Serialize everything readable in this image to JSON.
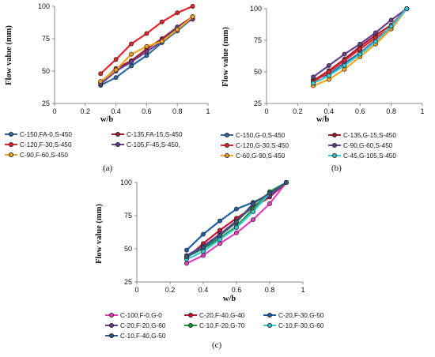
{
  "chart_data": [
    {
      "panel_label": "(a)",
      "type": "line",
      "xlabel": "w/b",
      "ylabel": "Flow value (mm)",
      "xlim": [
        0,
        1
      ],
      "ylim": [
        25,
        100
      ],
      "x_ticks": [
        "0",
        "0.2",
        "0.4",
        "0.6",
        "0.8",
        "1"
      ],
      "y_ticks": [
        "25",
        "50",
        "75",
        "100"
      ],
      "grid": false,
      "x": [
        0.3,
        0.4,
        0.5,
        0.6,
        0.7,
        0.8,
        0.9
      ],
      "series": [
        {
          "name": "C-150,FA-0,S-450",
          "color": "#2b6aa6",
          "values": [
            39,
            45,
            54,
            62,
            72,
            81,
            91
          ]
        },
        {
          "name": "C-135,FA-15,S-450",
          "color": "#a21d2e",
          "values": [
            41,
            52,
            58,
            67,
            75,
            84,
            92
          ]
        },
        {
          "name": "C-120,F-30,S-450",
          "color": "#e2242b",
          "values": [
            48,
            59,
            71,
            79,
            88,
            95,
            100
          ]
        },
        {
          "name": "C-105,F-45,S-450,",
          "color": "#6a3e8e",
          "values": [
            40,
            50,
            57,
            65,
            73,
            84,
            90
          ]
        },
        {
          "name": "C-90,F-60,S-450",
          "color": "#f2a51d",
          "values": [
            42,
            51,
            63,
            69,
            73,
            82,
            92
          ]
        }
      ]
    },
    {
      "panel_label": "(b)",
      "type": "line",
      "xlabel": "w/b",
      "ylabel": "Flow value (mm)",
      "xlim": [
        0,
        1
      ],
      "ylim": [
        25,
        100
      ],
      "x_ticks": [
        "0",
        "0.2",
        "0.4",
        "0.6",
        "0.8",
        "1"
      ],
      "y_ticks": [
        "25",
        "50",
        "75",
        "100"
      ],
      "grid": false,
      "x": [
        0.3,
        0.4,
        0.5,
        0.6,
        0.7,
        0.8,
        0.9
      ],
      "series": [
        {
          "name": "C-150,G-0,S-450",
          "color": "#2b6aa6",
          "values": [
            44,
            48,
            57,
            65,
            75,
            84,
            100
          ]
        },
        {
          "name": "C-135,G-15,S-450",
          "color": "#a21d2e",
          "values": [
            43,
            51,
            60,
            70,
            79,
            87,
            100
          ]
        },
        {
          "name": "C-120,G-30,S-450",
          "color": "#e2242b",
          "values": [
            42,
            50,
            59,
            68,
            77,
            85,
            100
          ]
        },
        {
          "name": "C-90,G-60,S-450",
          "color": "#6a3e8e",
          "values": [
            46,
            55,
            64,
            72,
            81,
            91,
            100
          ]
        },
        {
          "name": "C-60,G-90,S-450",
          "color": "#f2a51d",
          "values": [
            39,
            44,
            52,
            62,
            72,
            84,
            100
          ]
        },
        {
          "name": "C-45,G-105,S-450",
          "color": "#37c7d6",
          "values": [
            41,
            47,
            55,
            64,
            74,
            86,
            100
          ]
        }
      ]
    },
    {
      "panel_label": "(c)",
      "type": "line",
      "xlabel": "w/b",
      "ylabel": "Flow value (mm)",
      "xlim": [
        0,
        1
      ],
      "ylim": [
        25,
        100
      ],
      "x_ticks": [
        "0",
        "0.2",
        "0.4",
        "0.6",
        "0.8",
        "1"
      ],
      "y_ticks": [
        "25",
        "50",
        "75",
        "100"
      ],
      "grid": false,
      "x": [
        0.3,
        0.4,
        0.5,
        0.6,
        0.7,
        0.8,
        0.9
      ],
      "series": [
        {
          "name": "C-100,F-0,G-0",
          "color": "#e040c0",
          "values": [
            39,
            45,
            54,
            62,
            72,
            84,
            100
          ]
        },
        {
          "name": "C-20,F-40,G-40",
          "color": "#c8102e",
          "values": [
            43,
            54,
            64,
            73,
            81,
            89,
            100
          ]
        },
        {
          "name": "C-20,F-30,G-50",
          "color": "#1f5fa8",
          "values": [
            49,
            61,
            71,
            80,
            85,
            91,
            100
          ]
        },
        {
          "name": "C-20,F-20,G-60",
          "color": "#6a3e8e",
          "values": [
            45,
            52,
            61,
            71,
            82,
            90,
            100
          ]
        },
        {
          "name": "C-10,F-20,G-70",
          "color": "#1a9a3a",
          "values": [
            44,
            50,
            58,
            67,
            80,
            93,
            100
          ]
        },
        {
          "name": "C-10,F-30,G-60",
          "color": "#37c7d6",
          "values": [
            42,
            48,
            57,
            66,
            78,
            92,
            100
          ]
        },
        {
          "name": "C-10,F-40,G-50",
          "color": "#35597e",
          "values": [
            44,
            51,
            60,
            70,
            84,
            92,
            100
          ]
        }
      ]
    }
  ]
}
